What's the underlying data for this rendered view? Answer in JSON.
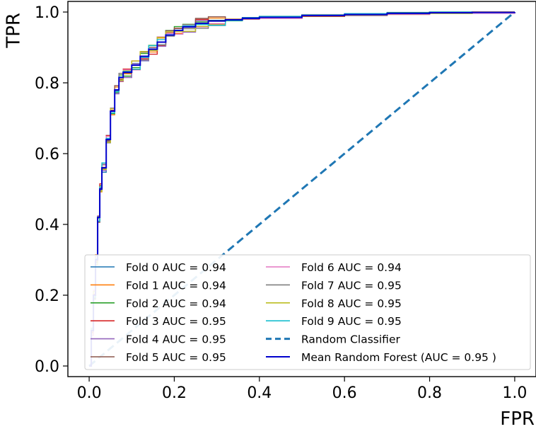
{
  "chart_data": {
    "type": "line",
    "title": "",
    "xlabel": "FPR",
    "ylabel": "TPR",
    "xlim": [
      -0.05,
      1.05
    ],
    "ylim": [
      -0.03,
      1.03
    ],
    "xticks": [
      "0.0",
      "0.2",
      "0.4",
      "0.6",
      "0.8",
      "1.0"
    ],
    "yticks": [
      "0.0",
      "0.2",
      "0.4",
      "0.6",
      "0.8",
      "1.0"
    ],
    "xtick_values": [
      0,
      0.2,
      0.4,
      0.6,
      0.8,
      1.0
    ],
    "ytick_values": [
      0,
      0.2,
      0.4,
      0.6,
      0.8,
      1.0
    ],
    "grid": false,
    "legend_position": "lower-center",
    "series": [
      {
        "name": "Fold 0 AUC = 0.94",
        "color": "#1f77b4",
        "style": "solid"
      },
      {
        "name": "Fold 1 AUC = 0.94",
        "color": "#ff7f0e",
        "style": "solid"
      },
      {
        "name": "Fold 2 AUC = 0.94",
        "color": "#2ca02c",
        "style": "solid"
      },
      {
        "name": "Fold 3 AUC = 0.95",
        "color": "#d62728",
        "style": "solid"
      },
      {
        "name": "Fold 4 AUC = 0.95",
        "color": "#9467bd",
        "style": "solid"
      },
      {
        "name": "Fold 5 AUC = 0.95",
        "color": "#8c564b",
        "style": "solid"
      },
      {
        "name": "Fold 6 AUC = 0.94",
        "color": "#e377c2",
        "style": "solid"
      },
      {
        "name": "Fold 7 AUC = 0.95",
        "color": "#7f7f7f",
        "style": "solid"
      },
      {
        "name": "Fold 8 AUC = 0.95",
        "color": "#bcbd22",
        "style": "solid"
      },
      {
        "name": "Fold 9 AUC = 0.95",
        "color": "#17becf",
        "style": "solid"
      },
      {
        "name": "Random Classifier",
        "color": "#1f77b4",
        "style": "dashed"
      },
      {
        "name": "Mean Random Forest (AUC = 0.95 )",
        "color": "#0000cd",
        "style": "solid"
      }
    ],
    "base_curve": {
      "x": [
        0.0,
        0.005,
        0.01,
        0.015,
        0.02,
        0.025,
        0.03,
        0.04,
        0.05,
        0.06,
        0.07,
        0.08,
        0.1,
        0.12,
        0.14,
        0.16,
        0.18,
        0.2,
        0.22,
        0.25,
        0.28,
        0.32,
        0.36,
        0.4,
        0.5,
        0.6,
        0.7,
        0.8,
        0.9,
        1.0
      ],
      "y": [
        0.0,
        0.1,
        0.2,
        0.3,
        0.42,
        0.5,
        0.56,
        0.64,
        0.72,
        0.78,
        0.815,
        0.83,
        0.85,
        0.875,
        0.895,
        0.915,
        0.935,
        0.948,
        0.958,
        0.968,
        0.975,
        0.978,
        0.982,
        0.985,
        0.99,
        0.993,
        0.996,
        0.998,
        0.999,
        1.0
      ]
    },
    "random_classifier": {
      "x": [
        0,
        1
      ],
      "y": [
        0,
        1
      ]
    }
  }
}
